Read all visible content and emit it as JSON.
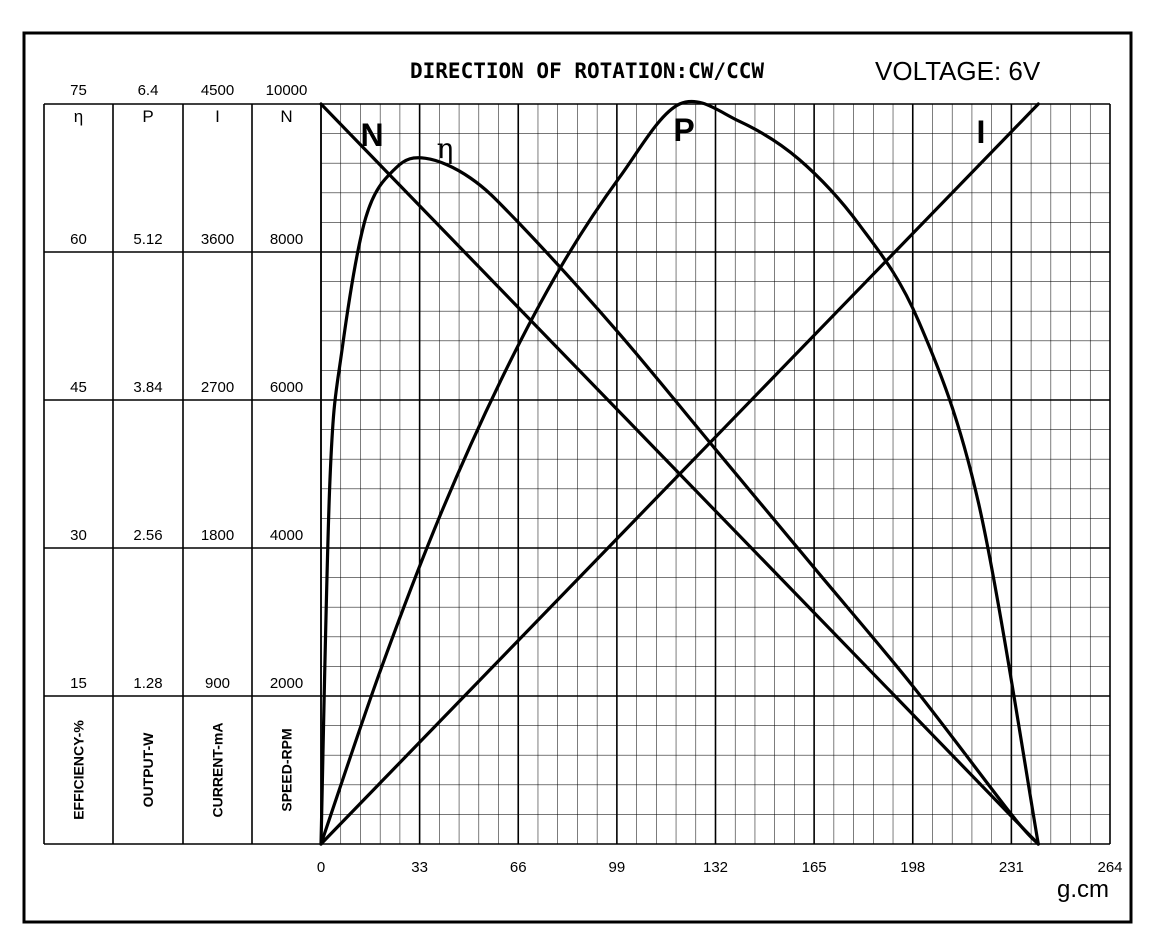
{
  "chart_data": {
    "type": "line",
    "title": "DIRECTION OF ROTATION:CW/CCW",
    "voltage_label": "VOLTAGE: 6V",
    "xlabel": "g.cm",
    "x_ticks": [
      "0",
      "33",
      "66",
      "99",
      "132",
      "165",
      "198",
      "231",
      "264"
    ],
    "xlim": [
      0,
      264
    ],
    "grid": true,
    "axes": [
      {
        "symbol": "η",
        "name": "EFFICIENCY-%",
        "top": "75",
        "ticks": [
          "60",
          "45",
          "30",
          "15"
        ],
        "max": 75
      },
      {
        "symbol": "P",
        "name": "OUTPUT-W",
        "top": "6.4",
        "ticks": [
          "5.12",
          "3.84",
          "2.56",
          "1.28"
        ],
        "max": 6.4
      },
      {
        "symbol": "I",
        "name": "CURRENT-mA",
        "top": "4500",
        "ticks": [
          "3600",
          "2700",
          "1800",
          "900"
        ],
        "max": 4500
      },
      {
        "symbol": "N",
        "name": "SPEED-RPM",
        "top": "10000",
        "ticks": [
          "8000",
          "6000",
          "4000",
          "2000"
        ],
        "max": 10000
      }
    ],
    "series": [
      {
        "name": "N",
        "axis": 3,
        "x": [
          0,
          240
        ],
        "values": [
          10000,
          0
        ]
      },
      {
        "name": "I",
        "axis": 2,
        "x": [
          0,
          240
        ],
        "values": [
          0,
          4500
        ]
      },
      {
        "name": "P",
        "axis": 1,
        "x": [
          0,
          20,
          40,
          60,
          80,
          100,
          120,
          140,
          160,
          180,
          200,
          220,
          240
        ],
        "values": [
          0,
          1.51,
          2.85,
          4.0,
          4.98,
          5.77,
          6.4,
          6.25,
          5.92,
          5.36,
          4.52,
          2.95,
          0
        ]
      },
      {
        "name": "η",
        "axis": 0,
        "x": [
          0,
          3,
          7,
          15,
          25,
          35,
          50,
          66,
          99,
          132,
          165,
          198,
          231,
          240
        ],
        "values": [
          0,
          37,
          50,
          63.5,
          68.5,
          69.5,
          67.5,
          63,
          52,
          40,
          28,
          16,
          3,
          0
        ]
      }
    ]
  }
}
